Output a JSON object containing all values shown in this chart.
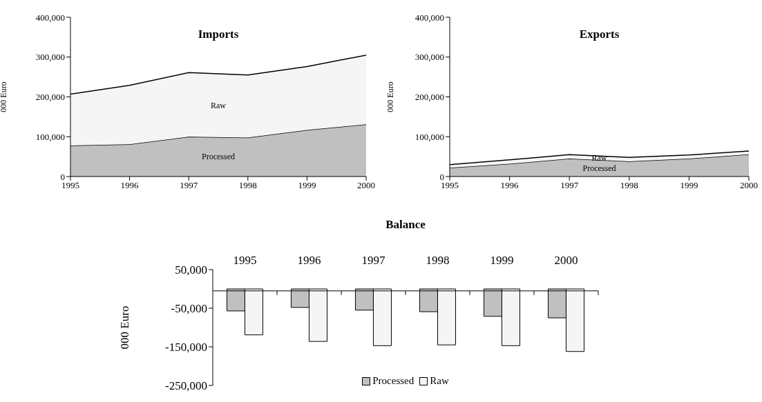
{
  "chart_data": [
    {
      "type": "area",
      "title": "Imports",
      "ylabel": "000 Euro",
      "stacked": true,
      "legend": false,
      "x": [
        1995,
        1996,
        1997,
        1998,
        1999,
        2000
      ],
      "xlim": [
        1995,
        2000
      ],
      "xticks": [
        1995,
        1996,
        1997,
        1998,
        1999,
        2000
      ],
      "ylim": [
        0,
        400000
      ],
      "yticks": [
        0,
        {
          "value": 100000,
          "label": "100,000"
        },
        {
          "value": 200000,
          "label": "200,000"
        },
        {
          "value": 300000,
          "label": "300,000"
        },
        {
          "value": 400000,
          "label": "400,000"
        }
      ],
      "series": [
        {
          "name": "Processed",
          "color": "#c0c0c0",
          "values": [
            78000,
            81000,
            100000,
            98000,
            117000,
            131000
          ]
        },
        {
          "name": "Raw",
          "color": "#f5f5f5",
          "values": [
            129000,
            148000,
            161000,
            157000,
            159000,
            174000
          ]
        }
      ]
    },
    {
      "type": "area",
      "title": "Exports",
      "ylabel": "000 Euro",
      "stacked": true,
      "legend": false,
      "x": [
        1995,
        1996,
        1997,
        1998,
        1999,
        2000
      ],
      "xlim": [
        1995,
        2000
      ],
      "xticks": [
        1995,
        1996,
        1997,
        1998,
        1999,
        2000
      ],
      "ylim": [
        0,
        400000
      ],
      "yticks": [
        0,
        {
          "value": 100000,
          "label": "100,000"
        },
        {
          "value": 200000,
          "label": "200,000"
        },
        {
          "value": 300000,
          "label": "300,000"
        },
        {
          "value": 400000,
          "label": "400,000"
        }
      ],
      "series": [
        {
          "name": "Processed",
          "color": "#c0c0c0",
          "values": [
            22000,
            32000,
            45000,
            38000,
            45000,
            56000
          ]
        },
        {
          "name": "Raw",
          "color": "#f5f5f5",
          "values": [
            8000,
            10000,
            10000,
            10000,
            9000,
            8000
          ]
        }
      ]
    },
    {
      "type": "bar",
      "title": "Balance",
      "ylabel": "000 Euro",
      "legend": "bottom",
      "categories": [
        "1995",
        "1996",
        "1997",
        "1998",
        "1999",
        "2000"
      ],
      "ylim": [
        -250000,
        50000
      ],
      "yticks": [
        {
          "value": 50000,
          "label": "50,000"
        },
        {
          "value": -50000,
          "label": "-50,000"
        },
        {
          "value": -150000,
          "label": "-150,000"
        },
        {
          "value": -250000,
          "label": "-250,000"
        }
      ],
      "series": [
        {
          "name": "Processed",
          "color": "#c0c0c0",
          "values": [
            -57000,
            -48000,
            -55000,
            -59000,
            -71000,
            -75000
          ]
        },
        {
          "name": "Raw",
          "color": "#f5f5f5",
          "values": [
            -119000,
            -136000,
            -147000,
            -145000,
            -147000,
            -162000
          ]
        }
      ]
    }
  ]
}
